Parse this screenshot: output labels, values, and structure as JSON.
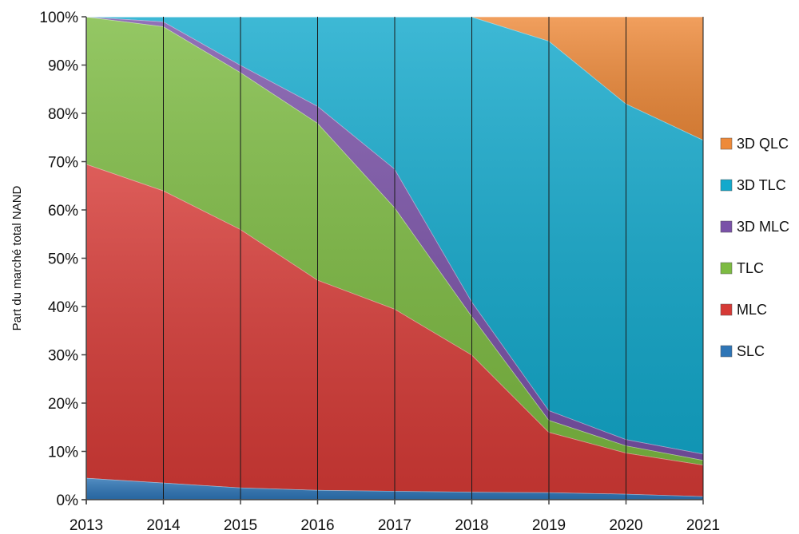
{
  "chart_data": {
    "type": "area",
    "stacked": true,
    "percent_stacked": true,
    "ylabel": "Part du marché total NAND",
    "xlabel": "",
    "x": [
      "2013",
      "2014",
      "2015",
      "2016",
      "2017",
      "2018",
      "2019",
      "2020",
      "2021"
    ],
    "ylim": [
      0,
      100
    ],
    "y_ticks": [
      "0%",
      "10%",
      "20%",
      "30%",
      "40%",
      "50%",
      "60%",
      "70%",
      "80%",
      "90%",
      "100%"
    ],
    "grid": "vertical lines at each year",
    "legend_position": "right",
    "series": [
      {
        "name": "SLC",
        "color": "#2e75b6",
        "values": [
          4.5,
          3.5,
          2.5,
          2.0,
          1.8,
          1.6,
          1.5,
          1.2,
          0.7
        ]
      },
      {
        "name": "MLC",
        "color": "#d63a36",
        "values": [
          65,
          60.5,
          53.5,
          43.5,
          37.7,
          28.4,
          12.5,
          8.5,
          6.5
        ]
      },
      {
        "name": "TLC",
        "color": "#7dbb42",
        "values": [
          30.5,
          34,
          32.5,
          32.5,
          21,
          8,
          2.5,
          1.5,
          1.0
        ]
      },
      {
        "name": "3D MLC",
        "color": "#7a52a8",
        "values": [
          0,
          1,
          1.5,
          3.5,
          8,
          3,
          2,
          1.3,
          1.3
        ]
      },
      {
        "name": "3D TLC",
        "color": "#13a9cc",
        "values": [
          0,
          1,
          10,
          18.5,
          31.5,
          59,
          76.5,
          69.5,
          65
        ]
      },
      {
        "name": "3D QLC",
        "color": "#ee8a3a",
        "values": [
          0,
          0,
          0,
          0,
          0,
          0,
          5,
          18,
          25.5
        ]
      }
    ]
  }
}
